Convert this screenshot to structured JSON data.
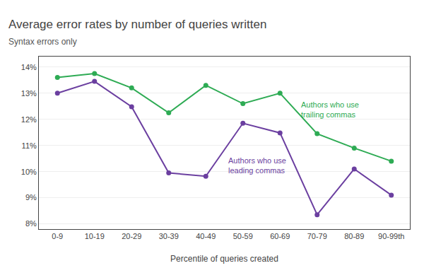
{
  "chart_data": {
    "type": "line",
    "title": "Average error rates by number of queries written",
    "subtitle": "Syntax errors only",
    "xlabel": "Percentile of queries created",
    "categories": [
      "0-9",
      "10-19",
      "20-29",
      "30-39",
      "40-49",
      "50-59",
      "60-69",
      "70-79",
      "80-89",
      "90-99th"
    ],
    "series": [
      {
        "name": "Authors who use\ntrailing commas",
        "color": "#2eab54",
        "values": [
          13.6,
          13.75,
          13.2,
          12.25,
          13.3,
          12.6,
          13.0,
          11.45,
          10.9,
          10.4
        ]
      },
      {
        "name": "Authors who use\nleading commas",
        "color": "#6b3fa0",
        "values": [
          13.0,
          13.45,
          12.48,
          9.95,
          9.82,
          11.85,
          11.48,
          8.35,
          10.1,
          9.1
        ]
      }
    ],
    "ylim": [
      7.8,
      14.4
    ],
    "yticks": [
      {
        "value": 8,
        "label": "8%"
      },
      {
        "value": 9,
        "label": "9%"
      },
      {
        "value": 10,
        "label": "10%"
      },
      {
        "value": 11,
        "label": "11%"
      },
      {
        "value": 12,
        "label": "12%"
      },
      {
        "value": 13,
        "label": "13%"
      },
      {
        "value": 14,
        "label": "14%"
      }
    ],
    "grid": true,
    "marker": "circle"
  }
}
